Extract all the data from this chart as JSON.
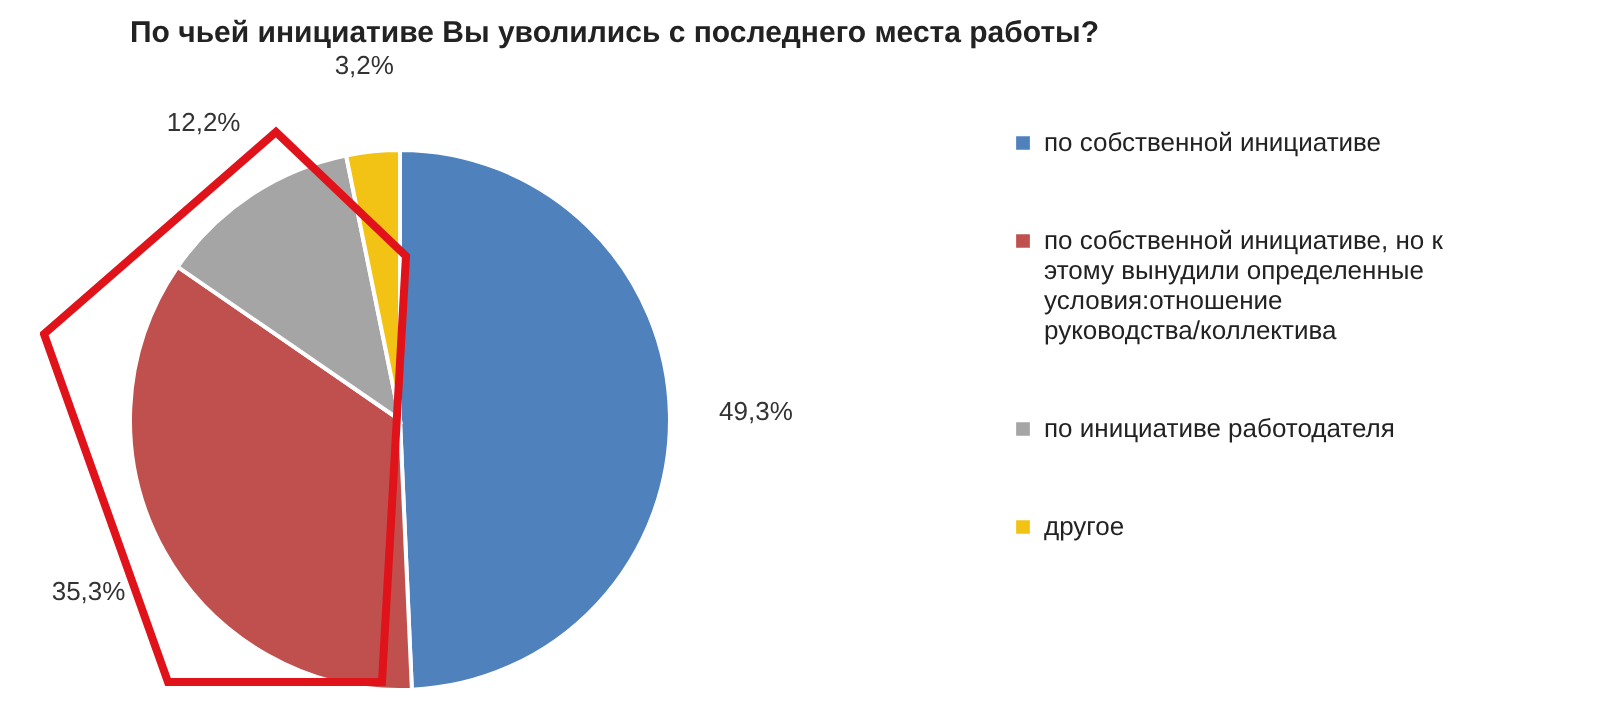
{
  "chart_data": {
    "type": "pie",
    "title": "По чьей инициативе Вы уволились с последнего места работы?",
    "categories": [
      "по собственной инициативе",
      "по собственной инициативе, но к этому вынудили определенные условия:отношение руководства/коллектива",
      "по инициативе работодателя",
      "другое"
    ],
    "values": [
      49.3,
      35.3,
      12.2,
      3.2
    ],
    "colors": [
      "#4f81bd",
      "#c0504d",
      "#a5a5a5",
      "#f2c314"
    ],
    "value_labels": [
      "49,3%",
      "35,3%",
      "12,2%",
      "3,2%"
    ],
    "legend": "right"
  }
}
